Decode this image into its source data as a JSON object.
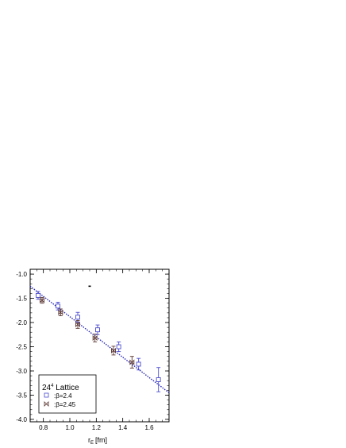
{
  "chart_data": {
    "type": "scatter",
    "xlabel": "r",
    "xlabel_sub": "E",
    "xlabel_unit": "[fm]",
    "xlim": [
      0.7,
      1.75
    ],
    "ylim": [
      -4.05,
      -0.9
    ],
    "x_ticks": [
      0.8,
      1.0,
      1.2,
      1.4,
      1.6
    ],
    "x_tick_labels": [
      "0.8",
      "1.0",
      "1.2",
      "1.4",
      "1.6"
    ],
    "y_ticks": [
      -1.0,
      -1.5,
      -2.0,
      -2.5,
      -3.0,
      -3.5,
      -4.0
    ],
    "y_tick_labels": [
      "-1.0",
      "-1.5",
      "-2.0",
      "-2.5",
      "-3.0",
      "-3.5",
      "-4.0"
    ],
    "grid": false,
    "legend": {
      "title": "24",
      "title_sup": "4",
      "title_rest": " Lattice",
      "placement": "bottom-left",
      "entries": [
        {
          "symbol": "□",
          "label": ":β=2.4"
        },
        {
          "symbol": "⋈",
          "label": ":β=2.45"
        }
      ]
    },
    "series": [
      {
        "name": ":β=2.4",
        "marker": "square",
        "color": "#4a4ad0",
        "points": [
          {
            "x": 0.76,
            "y": -1.44,
            "err": 0.08
          },
          {
            "x": 0.91,
            "y": -1.66,
            "err": 0.08
          },
          {
            "x": 1.06,
            "y": -1.89,
            "err": 0.1
          },
          {
            "x": 1.21,
            "y": -2.15,
            "err": 0.1
          },
          {
            "x": 1.37,
            "y": -2.5,
            "err": 0.1
          },
          {
            "x": 1.52,
            "y": -2.86,
            "err": 0.12
          },
          {
            "x": 1.67,
            "y": -3.18,
            "err": 0.25
          }
        ]
      },
      {
        "name": ":β=2.45",
        "marker": "bowtie",
        "color": "#5a3530",
        "points": [
          {
            "x": 0.79,
            "y": -1.54,
            "err": 0.06
          },
          {
            "x": 0.93,
            "y": -1.79,
            "err": 0.07
          },
          {
            "x": 1.06,
            "y": -2.04,
            "err": 0.08
          },
          {
            "x": 1.19,
            "y": -2.32,
            "err": 0.08
          },
          {
            "x": 1.33,
            "y": -2.58,
            "err": 0.09
          },
          {
            "x": 1.47,
            "y": -2.82,
            "err": 0.12
          }
        ]
      }
    ],
    "fit_line": {
      "x": [
        0.7,
        1.75
      ],
      "y": [
        -1.25,
        -3.45
      ],
      "color": "#2a2ab8",
      "style": "dotted"
    },
    "stray_mark": {
      "x": 1.15,
      "y": -1.25
    }
  },
  "colors": {
    "frame": "#000000",
    "background": "#ffffff"
  }
}
